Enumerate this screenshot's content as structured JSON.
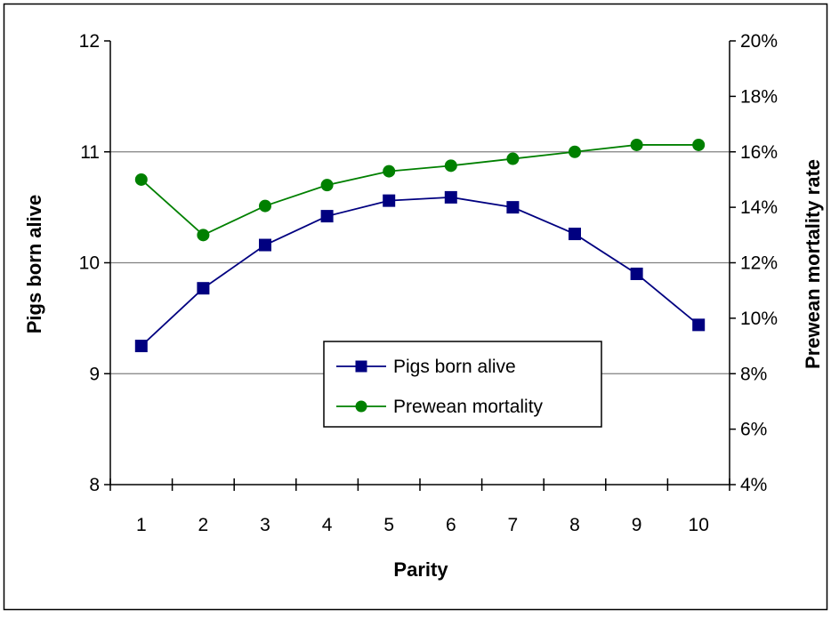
{
  "chart_data": {
    "type": "line",
    "categories": [
      "1",
      "2",
      "3",
      "4",
      "5",
      "6",
      "7",
      "8",
      "9",
      "10"
    ],
    "xlabel": "Parity",
    "ylabel_left": "Pigs born alive",
    "ylabel_right": "Prewean mortality rate",
    "ylim_left": [
      8,
      12
    ],
    "yticks_left": [
      "8",
      "9",
      "10",
      "11",
      "12"
    ],
    "ylim_right": [
      0.04,
      0.2
    ],
    "yticks_right": [
      "4%",
      "6%",
      "8%",
      "10%",
      "12%",
      "14%",
      "16%",
      "18%",
      "20%"
    ],
    "grid": "horizontal",
    "legend_position": "center-right",
    "series": [
      {
        "name": "Pigs born alive",
        "axis": "left",
        "marker": "square",
        "color": "#000080",
        "values": [
          9.25,
          9.77,
          10.16,
          10.42,
          10.56,
          10.59,
          10.5,
          10.26,
          9.9,
          9.44
        ]
      },
      {
        "name": "Prewean mortality",
        "axis": "right",
        "marker": "circle",
        "color": "#008000",
        "values": [
          0.15,
          0.13,
          0.1405,
          0.148,
          0.153,
          0.155,
          0.1575,
          0.16,
          0.1625,
          0.1625
        ]
      }
    ]
  }
}
